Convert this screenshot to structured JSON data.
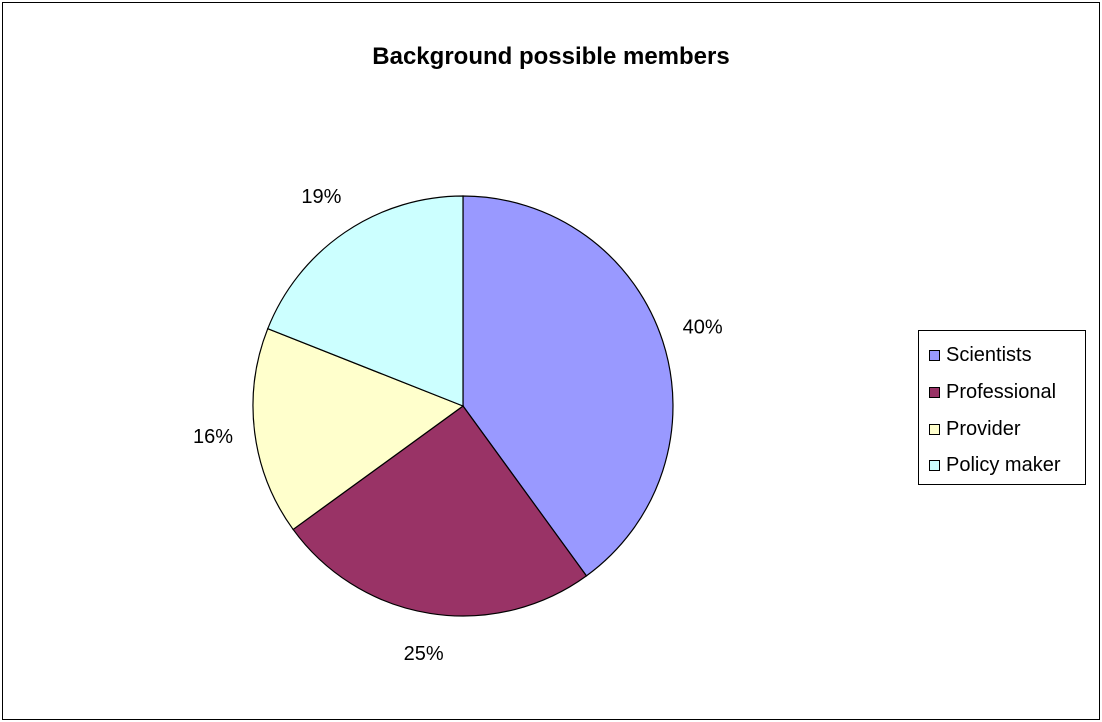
{
  "chart_data": {
    "type": "pie",
    "title": "Background possible members",
    "categories": [
      "Scientists",
      "Professional",
      "Provider",
      "Policy maker"
    ],
    "values": [
      40,
      25,
      16,
      19
    ],
    "labels": [
      "40%",
      "25%",
      "16%",
      "19%"
    ],
    "colors": [
      "#9999ff",
      "#993366",
      "#ffffcc",
      "#ccffff"
    ],
    "legend_position": "right",
    "start_angle_deg": 0,
    "direction": "clockwise"
  }
}
